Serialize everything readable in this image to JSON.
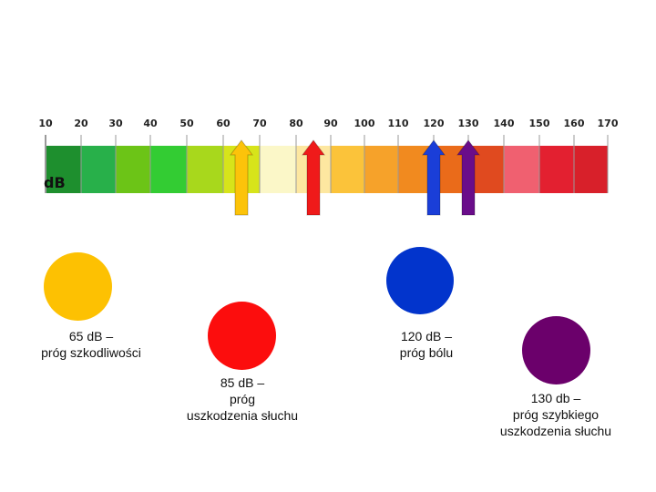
{
  "scale": {
    "unit": "dB",
    "ticks": [
      "10",
      "20",
      "30",
      "40",
      "50",
      "60",
      "70",
      "80",
      "90",
      "100",
      "110",
      "120",
      "130",
      "140",
      "150",
      "160",
      "170"
    ],
    "segment_colors": [
      "#1e8f2e",
      "#28b04a",
      "#6cc417",
      "#33cc33",
      "#a8d81c",
      "#d7e41a",
      "#fbf7c8",
      "#fde7a0",
      "#fbc33a",
      "#f6a22a",
      "#f18a1f",
      "#ea6b1a",
      "#e04a1f",
      "#f06070",
      "#e32030",
      "#d8202a",
      "#a5003a"
    ]
  },
  "arrows": [
    {
      "name": "arrow-65db",
      "value": 65,
      "color": "#fcc30a"
    },
    {
      "name": "arrow-85db",
      "value": 85,
      "color": "#ef1a1a"
    },
    {
      "name": "arrow-120db",
      "value": 120,
      "color": "#1a3ed8"
    },
    {
      "name": "arrow-130db",
      "value": 130,
      "color": "#6a0d8a"
    }
  ],
  "markers": [
    {
      "color": "#fdc102",
      "lines": [
        "65 dB –",
        "próg szkodliwości"
      ]
    },
    {
      "color": "#fc0d0d",
      "lines": [
        "85 dB –",
        "próg",
        "uszkodzenia słuchu"
      ]
    },
    {
      "color": "#0234cc",
      "lines": [
        "120 dB –",
        "próg bólu"
      ]
    },
    {
      "color": "#6b006b",
      "lines": [
        "130 db –",
        "próg szybkiego",
        "uszkodzenia słuchu"
      ]
    }
  ]
}
